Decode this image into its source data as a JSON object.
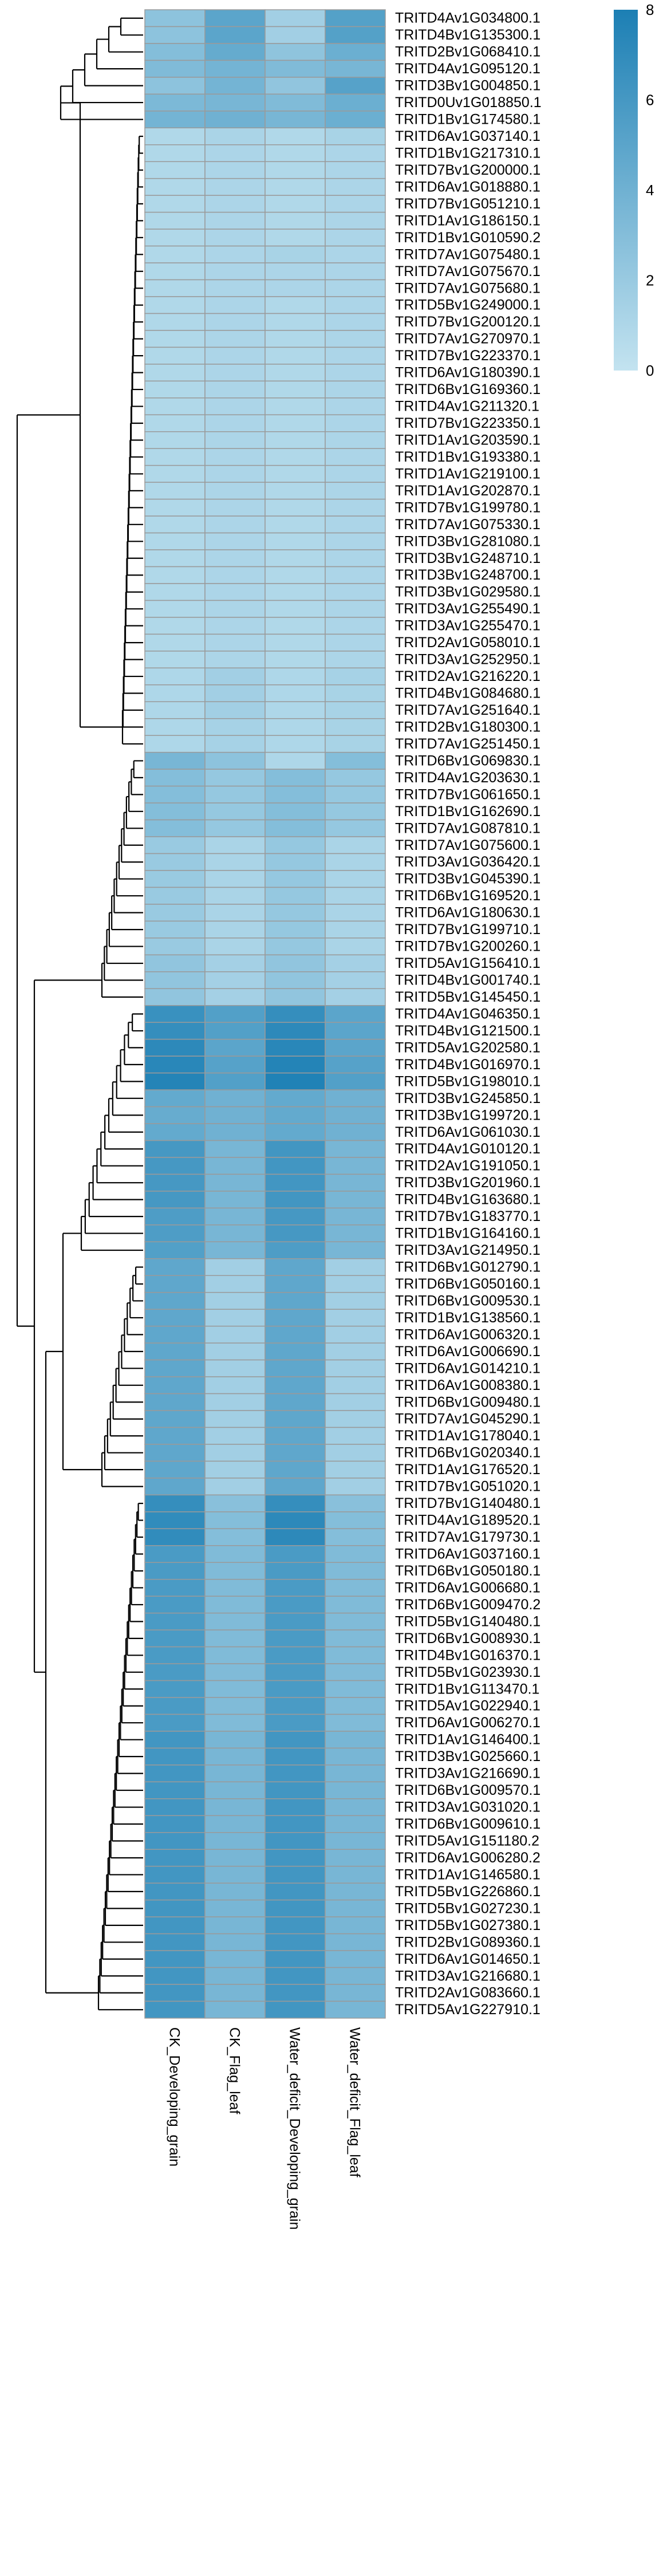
{
  "chart_data": {
    "type": "heatmap",
    "title": "",
    "xlabel": "",
    "ylabel": "",
    "columns": [
      "CK_Developing_grain",
      "CK_Flag_leaf",
      "Water_deficit_Developing_grain",
      "Water_deficit_Flag_leaf"
    ],
    "rows": [
      "TRITD4Av1G034800.1",
      "TRITD4Bv1G135300.1",
      "TRITD2Bv1G068410.1",
      "TRITD4Av1G095120.1",
      "TRITD3Bv1G004850.1",
      "TRITD0Uv1G018850.1",
      "TRITD1Bv1G174580.1",
      "TRITD6Av1G037140.1",
      "TRITD1Bv1G217310.1",
      "TRITD7Bv1G200000.1",
      "TRITD6Av1G018880.1",
      "TRITD7Bv1G051210.1",
      "TRITD1Av1G186150.1",
      "TRITD1Bv1G010590.2",
      "TRITD7Av1G075480.1",
      "TRITD7Av1G075670.1",
      "TRITD7Av1G075680.1",
      "TRITD5Bv1G249000.1",
      "TRITD7Bv1G200120.1",
      "TRITD7Av1G270970.1",
      "TRITD7Bv1G223370.1",
      "TRITD6Av1G180390.1",
      "TRITD6Bv1G169360.1",
      "TRITD4Av1G211320.1",
      "TRITD7Bv1G223350.1",
      "TRITD1Av1G203590.1",
      "TRITD1Bv1G193380.1",
      "TRITD1Av1G219100.1",
      "TRITD1Av1G202870.1",
      "TRITD7Bv1G199780.1",
      "TRITD7Av1G075330.1",
      "TRITD3Bv1G281080.1",
      "TRITD3Bv1G248710.1",
      "TRITD3Bv1G248700.1",
      "TRITD3Bv1G029580.1",
      "TRITD3Av1G255490.1",
      "TRITD3Av1G255470.1",
      "TRITD2Av1G058010.1",
      "TRITD3Av1G252950.1",
      "TRITD2Av1G216220.1",
      "TRITD4Bv1G084680.1",
      "TRITD7Av1G251640.1",
      "TRITD2Bv1G180300.1",
      "TRITD7Av1G251450.1",
      "TRITD6Bv1G069830.1",
      "TRITD4Av1G203630.1",
      "TRITD7Bv1G061650.1",
      "TRITD1Bv1G162690.1",
      "TRITD7Av1G087810.1",
      "TRITD7Av1G075600.1",
      "TRITD3Av1G036420.1",
      "TRITD3Bv1G045390.1",
      "TRITD6Bv1G169520.1",
      "TRITD6Av1G180630.1",
      "TRITD7Bv1G199710.1",
      "TRITD7Bv1G200260.1",
      "TRITD5Av1G156410.1",
      "TRITD4Bv1G001740.1",
      "TRITD5Bv1G145450.1",
      "TRITD4Av1G046350.1",
      "TRITD4Bv1G121500.1",
      "TRITD5Av1G202580.1",
      "TRITD4Bv1G016970.1",
      "TRITD5Bv1G198010.1",
      "TRITD3Bv1G245850.1",
      "TRITD3Bv1G199720.1",
      "TRITD6Av1G061030.1",
      "TRITD4Av1G010120.1",
      "TRITD2Av1G191050.1",
      "TRITD3Bv1G201960.1",
      "TRITD4Bv1G163680.1",
      "TRITD7Bv1G183770.1",
      "TRITD1Bv1G164160.1",
      "TRITD3Av1G214950.1",
      "TRITD6Bv1G012790.1",
      "TRITD6Bv1G050160.1",
      "TRITD6Bv1G009530.1",
      "TRITD1Bv1G138560.1",
      "TRITD6Av1G006320.1",
      "TRITD6Av1G006690.1",
      "TRITD6Av1G014210.1",
      "TRITD6Av1G008380.1",
      "TRITD6Bv1G009480.1",
      "TRITD7Av1G045290.1",
      "TRITD1Av1G178040.1",
      "TRITD6Bv1G020340.1",
      "TRITD1Av1G176520.1",
      "TRITD7Bv1G051020.1",
      "TRITD7Bv1G140480.1",
      "TRITD4Av1G189520.1",
      "TRITD7Av1G179730.1",
      "TRITD6Av1G037160.1",
      "TRITD6Bv1G050180.1",
      "TRITD6Av1G006680.1",
      "TRITD6Bv1G009470.2",
      "TRITD5Bv1G140480.1",
      "TRITD6Bv1G008930.1",
      "TRITD4Bv1G016370.1",
      "TRITD5Bv1G023930.1",
      "TRITD1Bv1G113470.1",
      "TRITD5Av1G022940.1",
      "TRITD6Av1G006270.1",
      "TRITD1Av1G146400.1",
      "TRITD3Bv1G025660.1",
      "TRITD3Av1G216690.1",
      "TRITD6Bv1G009570.1",
      "TRITD3Av1G031020.1",
      "TRITD6Bv1G009610.1",
      "TRITD5Av1G151180.2",
      "TRITD6Av1G006280.2",
      "TRITD1Av1G146580.1",
      "TRITD5Bv1G226860.1",
      "TRITD5Bv1G027230.1",
      "TRITD5Bv1G027380.1",
      "TRITD2Bv1G089360.1",
      "TRITD6Av1G014650.1",
      "TRITD3Av1G216680.1",
      "TRITD2Av1G083660.1",
      "TRITD5Av1G227910.1"
    ],
    "values": [
      [
        2.6,
        5.0,
        1.6,
        5.3
      ],
      [
        2.6,
        5.0,
        1.6,
        5.3
      ],
      [
        3.0,
        4.5,
        2.5,
        4.2
      ],
      [
        3.2,
        3.8,
        3.2,
        3.6
      ],
      [
        2.6,
        3.8,
        2.4,
        5.2
      ],
      [
        3.4,
        3.6,
        3.2,
        4.2
      ],
      [
        3.8,
        4.0,
        3.6,
        4.2
      ],
      [
        0.9,
        1.2,
        0.9,
        1.3
      ],
      [
        0.9,
        1.1,
        0.9,
        1.1
      ],
      [
        0.9,
        1.1,
        0.9,
        1.1
      ],
      [
        0.9,
        1.1,
        0.9,
        1.1
      ],
      [
        0.9,
        1.1,
        0.9,
        1.1
      ],
      [
        0.9,
        1.1,
        0.9,
        1.1
      ],
      [
        0.9,
        1.1,
        0.9,
        1.1
      ],
      [
        0.9,
        1.1,
        1.3,
        1.1
      ],
      [
        0.9,
        1.1,
        1.1,
        1.1
      ],
      [
        0.9,
        1.1,
        1.1,
        1.1
      ],
      [
        0.9,
        1.1,
        0.9,
        1.1
      ],
      [
        0.9,
        1.1,
        0.9,
        1.1
      ],
      [
        0.9,
        1.1,
        0.9,
        1.1
      ],
      [
        0.9,
        1.1,
        0.9,
        1.1
      ],
      [
        0.9,
        1.1,
        0.9,
        1.1
      ],
      [
        0.9,
        1.1,
        0.9,
        1.1
      ],
      [
        0.9,
        1.1,
        0.9,
        1.1
      ],
      [
        0.9,
        1.1,
        0.9,
        1.1
      ],
      [
        0.9,
        1.1,
        0.9,
        1.1
      ],
      [
        0.9,
        1.1,
        0.9,
        1.1
      ],
      [
        0.9,
        1.1,
        0.9,
        1.1
      ],
      [
        0.9,
        1.1,
        0.9,
        1.1
      ],
      [
        0.9,
        1.1,
        0.9,
        1.1
      ],
      [
        0.9,
        1.1,
        0.9,
        1.1
      ],
      [
        0.9,
        1.1,
        0.9,
        1.1
      ],
      [
        0.9,
        1.1,
        0.9,
        1.1
      ],
      [
        0.9,
        1.1,
        0.9,
        1.1
      ],
      [
        0.9,
        1.1,
        0.9,
        1.1
      ],
      [
        0.9,
        1.1,
        0.9,
        1.1
      ],
      [
        0.9,
        1.1,
        0.9,
        1.1
      ],
      [
        0.9,
        1.1,
        0.9,
        1.1
      ],
      [
        0.9,
        1.1,
        0.9,
        1.1
      ],
      [
        1.0,
        1.6,
        1.0,
        1.4
      ],
      [
        1.0,
        1.6,
        1.0,
        1.3
      ],
      [
        1.0,
        1.6,
        1.0,
        1.3
      ],
      [
        1.0,
        1.4,
        1.0,
        1.3
      ],
      [
        1.0,
        1.4,
        1.0,
        1.3
      ],
      [
        3.6,
        2.6,
        1.0,
        3.0
      ],
      [
        3.0,
        2.2,
        3.0,
        2.2
      ],
      [
        3.0,
        2.2,
        3.0,
        2.2
      ],
      [
        3.0,
        2.2,
        3.0,
        2.2
      ],
      [
        3.0,
        2.2,
        3.0,
        2.2
      ],
      [
        2.0,
        1.2,
        2.2,
        1.2
      ],
      [
        2.0,
        1.2,
        2.2,
        1.2
      ],
      [
        2.0,
        1.2,
        2.2,
        1.2
      ],
      [
        2.0,
        1.2,
        2.2,
        1.2
      ],
      [
        2.0,
        1.2,
        2.2,
        1.2
      ],
      [
        2.0,
        1.2,
        2.2,
        1.2
      ],
      [
        2.0,
        1.2,
        2.2,
        1.2
      ],
      [
        2.4,
        1.5,
        2.4,
        1.5
      ],
      [
        2.4,
        1.5,
        2.4,
        1.5
      ],
      [
        2.4,
        1.5,
        2.4,
        1.5
      ],
      [
        6.6,
        5.4,
        6.8,
        5.0
      ],
      [
        6.8,
        5.4,
        7.2,
        5.0
      ],
      [
        7.2,
        5.0,
        7.4,
        5.0
      ],
      [
        7.4,
        5.2,
        7.6,
        5.2
      ],
      [
        7.6,
        5.4,
        7.8,
        5.4
      ],
      [
        4.6,
        4.0,
        4.6,
        4.0
      ],
      [
        4.4,
        4.0,
        4.6,
        4.0
      ],
      [
        4.6,
        4.0,
        4.6,
        4.0
      ],
      [
        6.0,
        3.6,
        6.2,
        3.6
      ],
      [
        6.0,
        3.6,
        6.2,
        3.6
      ],
      [
        6.0,
        3.6,
        6.2,
        3.6
      ],
      [
        6.0,
        3.6,
        6.2,
        3.6
      ],
      [
        5.6,
        3.6,
        6.0,
        3.6
      ],
      [
        5.6,
        3.6,
        6.0,
        3.6
      ],
      [
        5.4,
        3.6,
        5.6,
        3.6
      ],
      [
        4.8,
        1.6,
        4.8,
        1.6
      ],
      [
        4.8,
        1.6,
        4.8,
        1.6
      ],
      [
        4.8,
        1.6,
        4.8,
        1.6
      ],
      [
        4.8,
        1.6,
        4.8,
        1.6
      ],
      [
        4.8,
        1.6,
        4.8,
        1.6
      ],
      [
        4.8,
        1.6,
        4.8,
        1.6
      ],
      [
        4.8,
        1.6,
        4.8,
        1.6
      ],
      [
        4.8,
        1.6,
        4.8,
        1.6
      ],
      [
        4.8,
        1.6,
        4.8,
        1.6
      ],
      [
        4.8,
        1.6,
        4.8,
        1.6
      ],
      [
        4.8,
        1.6,
        4.8,
        1.6
      ],
      [
        4.8,
        1.6,
        4.8,
        1.6
      ],
      [
        4.8,
        1.6,
        4.8,
        1.6
      ],
      [
        4.8,
        1.6,
        4.8,
        1.6
      ],
      [
        6.8,
        2.8,
        6.8,
        2.8
      ],
      [
        7.0,
        3.0,
        7.2,
        3.0
      ],
      [
        7.0,
        3.0,
        7.2,
        3.0
      ],
      [
        5.8,
        3.2,
        5.8,
        3.2
      ],
      [
        5.8,
        3.2,
        5.8,
        3.2
      ],
      [
        5.8,
        3.2,
        5.8,
        3.2
      ],
      [
        5.8,
        3.2,
        5.8,
        3.2
      ],
      [
        5.8,
        3.2,
        5.8,
        3.2
      ],
      [
        5.8,
        3.2,
        5.8,
        3.2
      ],
      [
        5.8,
        3.2,
        5.8,
        3.2
      ],
      [
        5.8,
        3.2,
        5.8,
        3.2
      ],
      [
        5.8,
        3.2,
        5.8,
        3.2
      ],
      [
        5.8,
        3.2,
        5.8,
        3.2
      ],
      [
        5.8,
        3.2,
        5.8,
        3.2
      ],
      [
        6.2,
        3.6,
        6.2,
        3.6
      ],
      [
        6.2,
        3.6,
        6.2,
        3.6
      ],
      [
        6.2,
        3.6,
        6.2,
        3.6
      ],
      [
        6.2,
        3.6,
        6.2,
        3.6
      ],
      [
        6.2,
        3.6,
        6.2,
        3.6
      ],
      [
        6.2,
        3.6,
        6.2,
        3.6
      ],
      [
        6.2,
        3.6,
        6.2,
        3.6
      ],
      [
        6.2,
        3.6,
        6.2,
        3.6
      ],
      [
        6.2,
        3.6,
        6.2,
        3.6
      ],
      [
        6.2,
        3.6,
        6.2,
        3.6
      ],
      [
        6.2,
        3.6,
        6.2,
        3.6
      ],
      [
        6.2,
        3.6,
        6.2,
        3.6
      ],
      [
        6.2,
        3.6,
        6.2,
        3.6
      ],
      [
        6.2,
        3.6,
        6.2,
        3.6
      ],
      [
        6.2,
        3.6,
        6.2,
        3.6
      ],
      [
        6.2,
        3.6,
        6.2,
        3.6
      ],
      [
        6.2,
        3.6,
        6.2,
        3.6
      ]
    ],
    "color_scale": {
      "min": 0,
      "max": 8,
      "low_color": "#c3e3f0",
      "high_color": "#1c7fb4",
      "ticks": [
        "0",
        "2",
        "4",
        "6",
        "8"
      ]
    },
    "dendrogram": "left",
    "legend_placement": "top-right"
  }
}
